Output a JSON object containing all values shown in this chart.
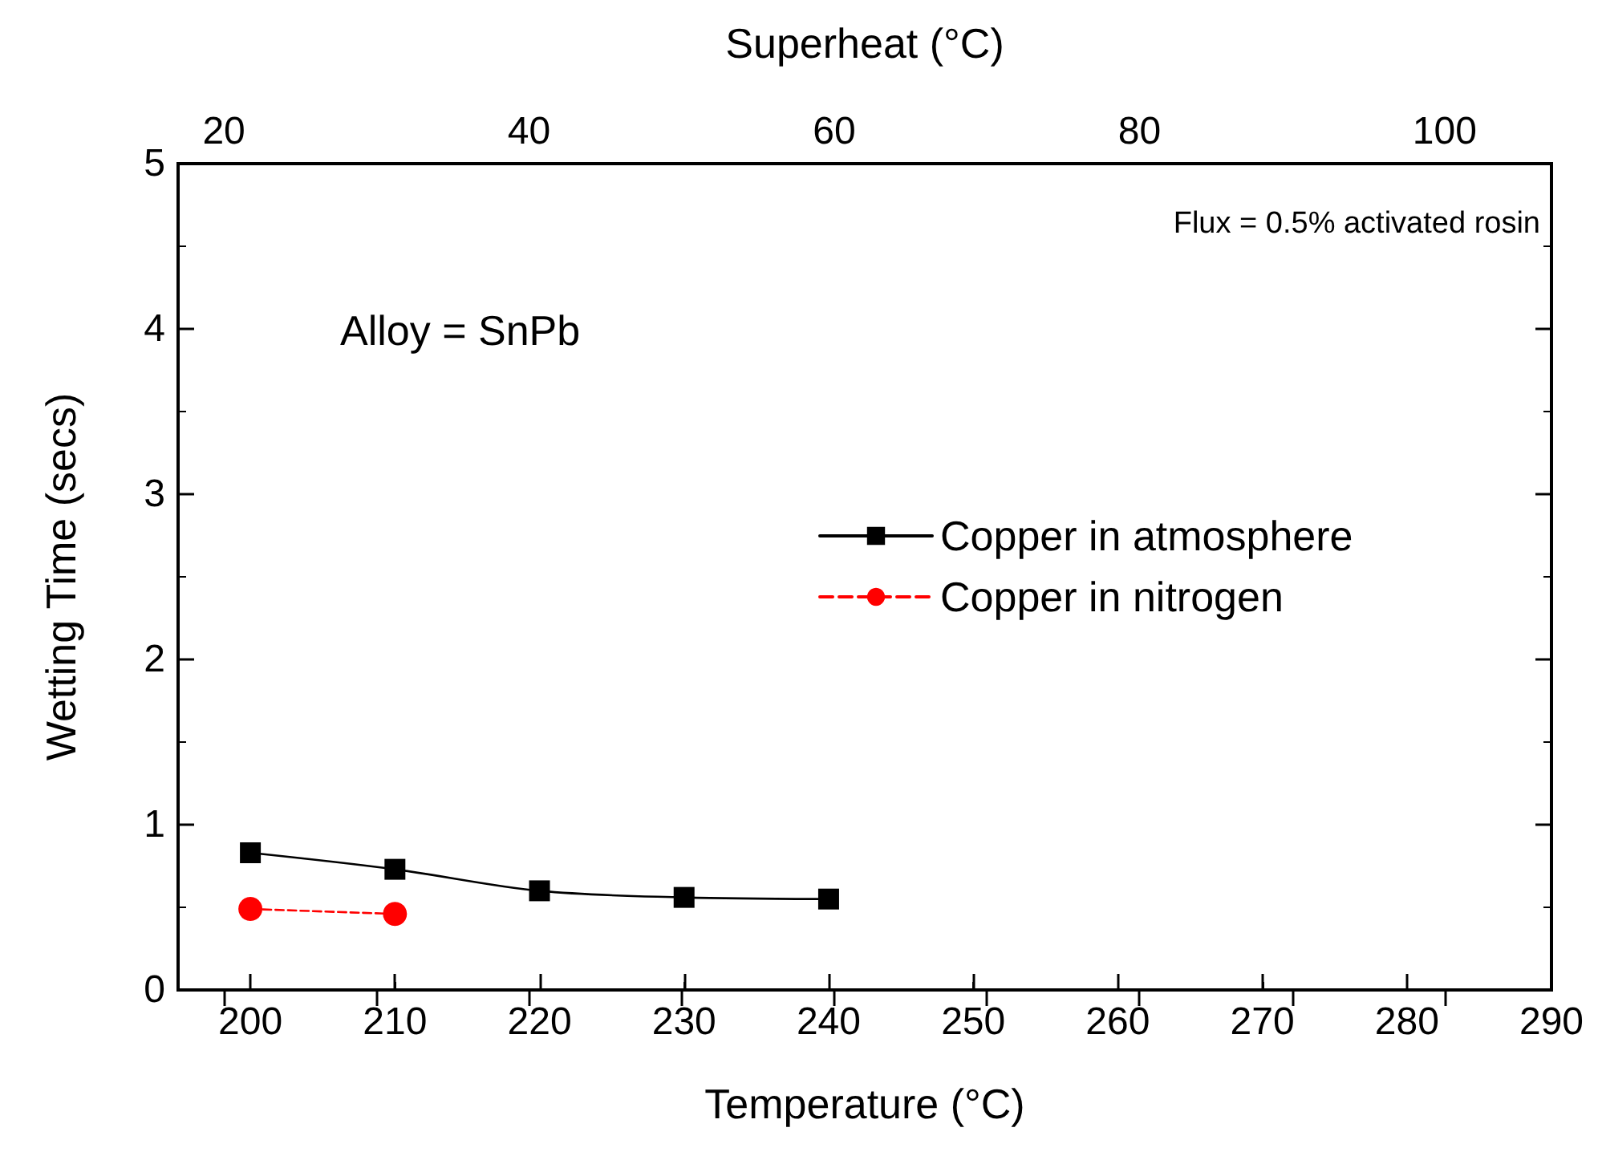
{
  "chart_data": {
    "type": "line",
    "xlabel": "Temperature (°C)",
    "ylabel": "Wetting Time (secs)",
    "x2label": "Superheat (°C)",
    "annotations": [
      "Flux = 0.5% activated rosin",
      "Alloy = SnPb"
    ],
    "x": [
      200,
      210,
      220,
      230,
      240
    ],
    "series": [
      {
        "name": "Copper in atmosphere",
        "color": "#000000",
        "marker": "square",
        "line_style": "solid",
        "values": [
          0.83,
          0.73,
          0.6,
          0.56,
          0.55
        ]
      },
      {
        "name": "Copper in nitrogen",
        "color": "#ff0000",
        "marker": "circle",
        "line_style": "dashed",
        "x": [
          200,
          210
        ],
        "values": [
          0.49,
          0.46
        ]
      }
    ],
    "xlim": [
      195,
      290
    ],
    "xticks": [
      200,
      210,
      220,
      230,
      240,
      250,
      260,
      270,
      280,
      290
    ],
    "x2lim": [
      17,
      107
    ],
    "x2ticks": [
      20,
      40,
      60,
      80,
      100
    ],
    "ylim": [
      0,
      5
    ],
    "yticks": [
      0,
      1,
      2,
      3,
      4,
      5
    ],
    "grid": false,
    "legend": "right"
  }
}
